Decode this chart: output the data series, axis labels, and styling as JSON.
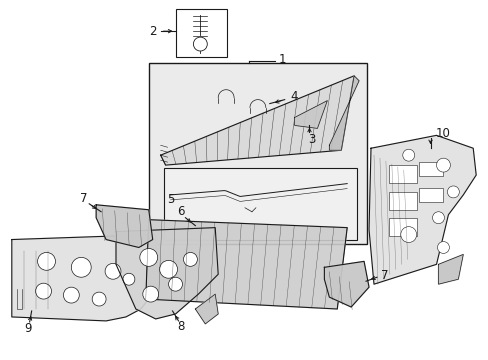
{
  "background_color": "#ffffff",
  "line_color": "#1a1a1a",
  "fig_width": 4.89,
  "fig_height": 3.6,
  "dpi": 100,
  "shading": "#e8e8e8",
  "shading2": "#f2f2f2",
  "box_bg": "#ebebeb",
  "inner_box_bg": "#f0f0f0",
  "white": "#ffffff",
  "label_fs": 8.5
}
